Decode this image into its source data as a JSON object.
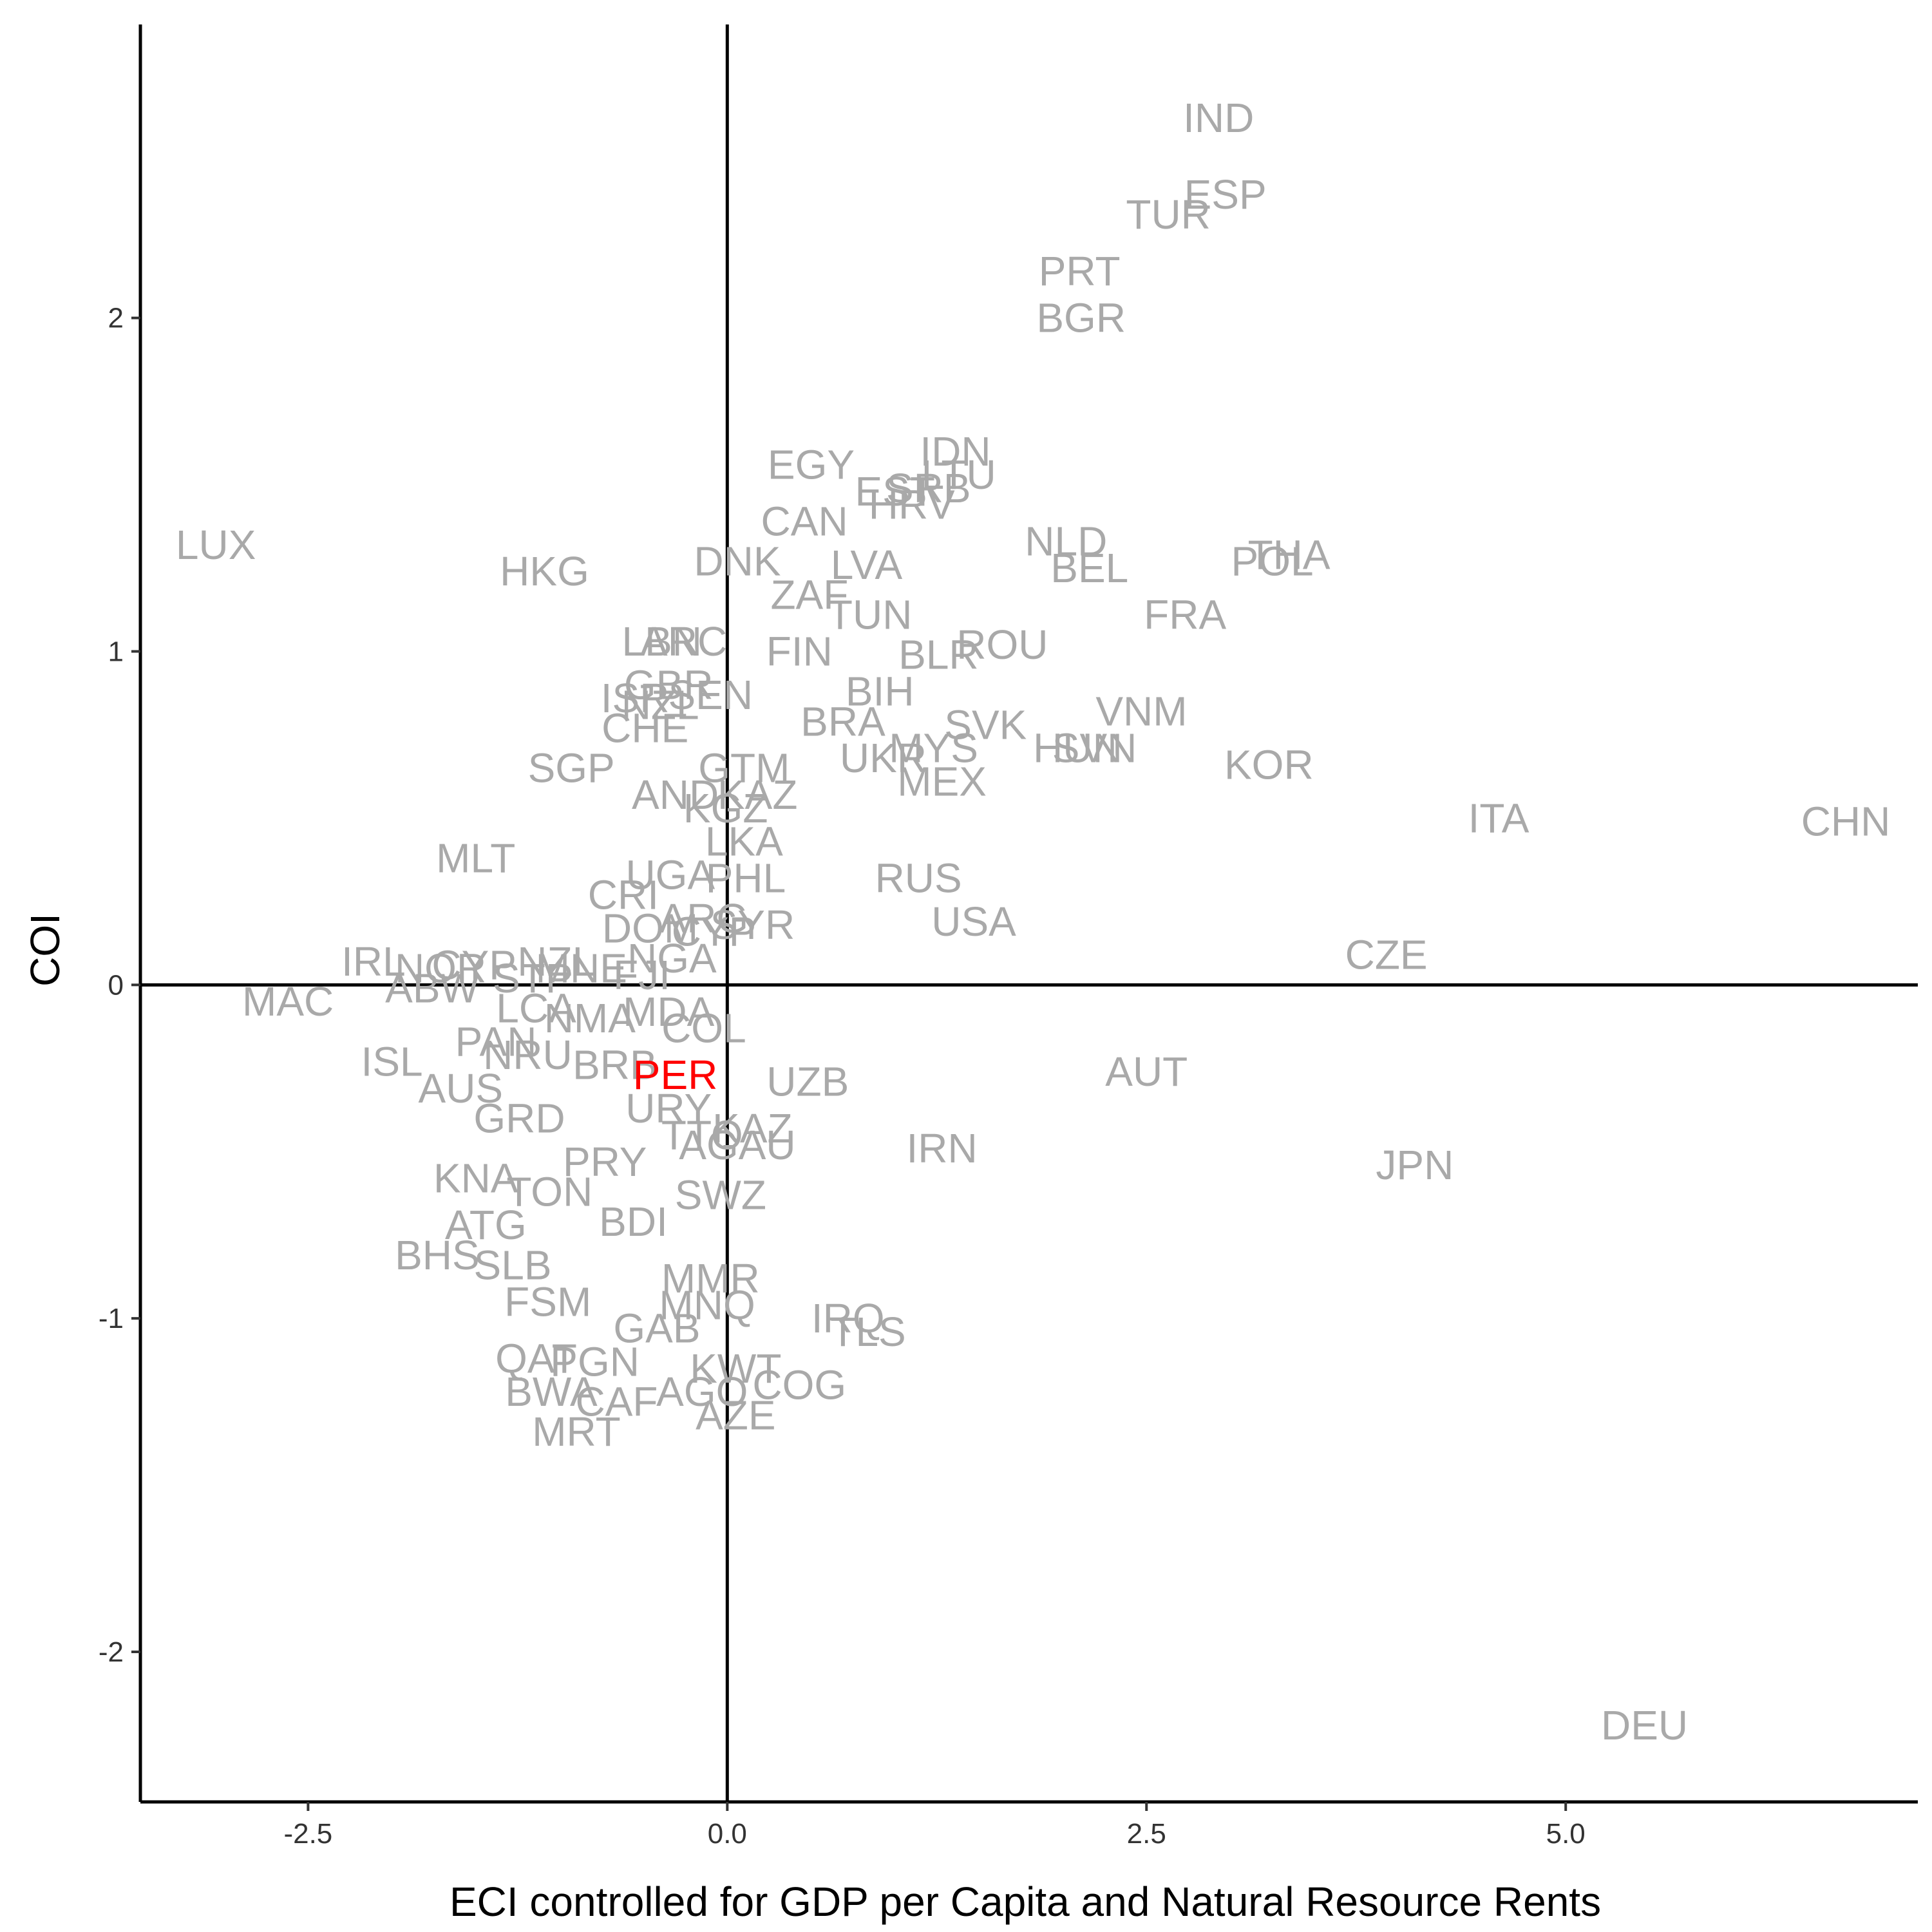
{
  "chart_data": {
    "type": "scatter",
    "title": "",
    "xlabel": "ECI controlled for GDP per Capita and Natural Resource Rents",
    "ylabel": "COI",
    "xlim": [
      -3.5,
      7.1
    ],
    "ylim": [
      -2.45,
      2.88
    ],
    "xticks": [
      -2.5,
      0.0,
      2.5,
      5.0
    ],
    "xtick_labels": [
      "-2.5",
      "0.0",
      "2.5",
      "5.0"
    ],
    "yticks": [
      -2,
      -1,
      0,
      1,
      2
    ],
    "ytick_labels": [
      "-2",
      "-1",
      "0",
      "1",
      "2"
    ],
    "reference_lines": {
      "x": 0,
      "y": 0
    },
    "grid": false,
    "colors": {
      "default": "#a9a9a9",
      "highlight": "#ff0000",
      "axis": "#000000"
    },
    "highlight": "PER",
    "points": [
      {
        "label": "IND",
        "x": 2.93,
        "y": 2.6
      },
      {
        "label": "ESP",
        "x": 2.97,
        "y": 2.37
      },
      {
        "label": "TUR",
        "x": 2.63,
        "y": 2.31
      },
      {
        "label": "PRT",
        "x": 2.1,
        "y": 2.14
      },
      {
        "label": "BGR",
        "x": 2.11,
        "y": 2.0
      },
      {
        "label": "IDN",
        "x": 1.36,
        "y": 1.6
      },
      {
        "label": "EGY",
        "x": 0.5,
        "y": 1.56
      },
      {
        "label": "LTU",
        "x": 1.38,
        "y": 1.53
      },
      {
        "label": "EST",
        "x": 1.0,
        "y": 1.48
      },
      {
        "label": "SRB",
        "x": 1.2,
        "y": 1.49
      },
      {
        "label": "HRV",
        "x": 1.1,
        "y": 1.44
      },
      {
        "label": "CAN",
        "x": 0.46,
        "y": 1.39
      },
      {
        "label": "NLD",
        "x": 2.02,
        "y": 1.33
      },
      {
        "label": "THA",
        "x": 3.35,
        "y": 1.29
      },
      {
        "label": "POL",
        "x": 3.25,
        "y": 1.27
      },
      {
        "label": "LUX",
        "x": -3.05,
        "y": 1.32
      },
      {
        "label": "HKG",
        "x": -1.09,
        "y": 1.24
      },
      {
        "label": "DNK",
        "x": 0.06,
        "y": 1.27
      },
      {
        "label": "LVA",
        "x": 0.83,
        "y": 1.26
      },
      {
        "label": "BEL",
        "x": 2.16,
        "y": 1.25
      },
      {
        "label": "ZAF",
        "x": 0.49,
        "y": 1.17
      },
      {
        "label": "TUN",
        "x": 0.85,
        "y": 1.11
      },
      {
        "label": "FRA",
        "x": 2.73,
        "y": 1.11
      },
      {
        "label": "LBN",
        "x": -0.39,
        "y": 1.03
      },
      {
        "label": "ARC",
        "x": -0.26,
        "y": 1.03
      },
      {
        "label": "FIN",
        "x": 0.43,
        "y": 1.0
      },
      {
        "label": "BLR",
        "x": 1.26,
        "y": 0.99
      },
      {
        "label": "ROU",
        "x": 1.64,
        "y": 1.02
      },
      {
        "label": "BIH",
        "x": 0.91,
        "y": 0.88
      },
      {
        "label": "VNM",
        "x": 2.47,
        "y": 0.82
      },
      {
        "label": "GBR",
        "x": -0.35,
        "y": 0.9
      },
      {
        "label": "SEN",
        "x": -0.1,
        "y": 0.87
      },
      {
        "label": "ISR",
        "x": -0.55,
        "y": 0.86
      },
      {
        "label": "NZL",
        "x": -0.4,
        "y": 0.84
      },
      {
        "label": "BRA",
        "x": 0.69,
        "y": 0.79
      },
      {
        "label": "SVK",
        "x": 1.54,
        "y": 0.78
      },
      {
        "label": "CHE",
        "x": -0.49,
        "y": 0.77
      },
      {
        "label": "HUN",
        "x": 2.09,
        "y": 0.71
      },
      {
        "label": "SVN",
        "x": 2.19,
        "y": 0.71
      },
      {
        "label": "MYS",
        "x": 1.23,
        "y": 0.71
      },
      {
        "label": "UKR",
        "x": 0.93,
        "y": 0.68
      },
      {
        "label": "SGP",
        "x": -0.93,
        "y": 0.65
      },
      {
        "label": "GTM",
        "x": 0.1,
        "y": 0.65
      },
      {
        "label": "KOR",
        "x": 3.23,
        "y": 0.66
      },
      {
        "label": "MEX",
        "x": 1.28,
        "y": 0.61
      },
      {
        "label": "AND",
        "x": -0.31,
        "y": 0.57
      },
      {
        "label": "KAZ",
        "x": 0.18,
        "y": 0.57
      },
      {
        "label": "KGZ",
        "x": -0.01,
        "y": 0.53
      },
      {
        "label": "ITA",
        "x": 4.6,
        "y": 0.5
      },
      {
        "label": "CHN",
        "x": 6.67,
        "y": 0.49
      },
      {
        "label": "LKA",
        "x": 0.1,
        "y": 0.43
      },
      {
        "label": "MLT",
        "x": -1.5,
        "y": 0.38
      },
      {
        "label": "UGA",
        "x": -0.34,
        "y": 0.33
      },
      {
        "label": "PHL",
        "x": 0.11,
        "y": 0.32
      },
      {
        "label": "RUS",
        "x": 1.14,
        "y": 0.32
      },
      {
        "label": "CRI",
        "x": -0.62,
        "y": 0.27
      },
      {
        "label": "ARG",
        "x": -0.14,
        "y": 0.2
      },
      {
        "label": "SYR",
        "x": 0.15,
        "y": 0.18
      },
      {
        "label": "USA",
        "x": 1.47,
        "y": 0.19
      },
      {
        "label": "DOM",
        "x": -0.46,
        "y": 0.17
      },
      {
        "label": "CYP",
        "x": -0.08,
        "y": 0.16
      },
      {
        "label": "CZE",
        "x": 3.93,
        "y": 0.09
      },
      {
        "label": "IRL",
        "x": -2.11,
        "y": 0.07
      },
      {
        "label": "NOR",
        "x": -1.71,
        "y": 0.05
      },
      {
        "label": "CYP",
        "x": -1.51,
        "y": 0.06
      },
      {
        "label": "NZL",
        "x": -1.02,
        "y": 0.07
      },
      {
        "label": "MNE",
        "x": -0.87,
        "y": 0.05
      },
      {
        "label": "NGA",
        "x": -0.33,
        "y": 0.08
      },
      {
        "label": "ABW",
        "x": -1.76,
        "y": -0.01
      },
      {
        "label": "STP",
        "x": -1.16,
        "y": 0.02
      },
      {
        "label": "FJI",
        "x": -0.51,
        "y": 0.03
      },
      {
        "label": "MAC",
        "x": -2.62,
        "y": -0.05
      },
      {
        "label": "LCA",
        "x": -1.14,
        "y": -0.07
      },
      {
        "label": "MDA",
        "x": -0.35,
        "y": -0.08
      },
      {
        "label": "NMA",
        "x": -0.82,
        "y": -0.1
      },
      {
        "label": "COL",
        "x": -0.14,
        "y": -0.13
      },
      {
        "label": "PAN",
        "x": -1.38,
        "y": -0.17
      },
      {
        "label": "ISL",
        "x": -2.0,
        "y": -0.23
      },
      {
        "label": "NRU",
        "x": -1.19,
        "y": -0.21
      },
      {
        "label": "BRB",
        "x": -0.67,
        "y": -0.24
      },
      {
        "label": "PER",
        "x": -0.31,
        "y": -0.27
      },
      {
        "label": "UZB",
        "x": 0.48,
        "y": -0.29
      },
      {
        "label": "AUT",
        "x": 2.5,
        "y": -0.26
      },
      {
        "label": "AUS",
        "x": -1.59,
        "y": -0.31
      },
      {
        "label": "URY",
        "x": -0.35,
        "y": -0.37
      },
      {
        "label": "GRD",
        "x": -1.24,
        "y": -0.4
      },
      {
        "label": "KAZ",
        "x": 0.15,
        "y": -0.43
      },
      {
        "label": "TTO",
        "x": -0.15,
        "y": -0.45
      },
      {
        "label": "AGAU",
        "x": 0.06,
        "y": -0.48
      },
      {
        "label": "IRN",
        "x": 1.28,
        "y": -0.49
      },
      {
        "label": "JPN",
        "x": 4.1,
        "y": -0.54
      },
      {
        "label": "PRY",
        "x": -0.73,
        "y": -0.53
      },
      {
        "label": "KNA",
        "x": -1.5,
        "y": -0.58
      },
      {
        "label": "TON",
        "x": -1.06,
        "y": -0.62
      },
      {
        "label": "SWZ",
        "x": -0.04,
        "y": -0.63
      },
      {
        "label": "ATG",
        "x": -1.44,
        "y": -0.72
      },
      {
        "label": "BDI",
        "x": -0.56,
        "y": -0.71
      },
      {
        "label": "BHS",
        "x": -1.73,
        "y": -0.81
      },
      {
        "label": "SLB",
        "x": -1.28,
        "y": -0.84
      },
      {
        "label": "MMR",
        "x": -0.1,
        "y": -0.88
      },
      {
        "label": "FSM",
        "x": -1.07,
        "y": -0.95
      },
      {
        "label": "MNQ",
        "x": -0.12,
        "y": -0.96
      },
      {
        "label": "IRQ",
        "x": 0.72,
        "y": -1.0
      },
      {
        "label": "TLS",
        "x": 0.84,
        "y": -1.04
      },
      {
        "label": "GAB",
        "x": -0.42,
        "y": -1.03
      },
      {
        "label": "QAT",
        "x": -1.14,
        "y": -1.12
      },
      {
        "label": "PGN",
        "x": -0.79,
        "y": -1.13
      },
      {
        "label": "KWT",
        "x": 0.05,
        "y": -1.15
      },
      {
        "label": "COG",
        "x": 0.43,
        "y": -1.2
      },
      {
        "label": "BWA",
        "x": -1.05,
        "y": -1.22
      },
      {
        "label": "CAF",
        "x": -0.66,
        "y": -1.25
      },
      {
        "label": "AGO",
        "x": -0.15,
        "y": -1.22
      },
      {
        "label": "AZE",
        "x": 0.05,
        "y": -1.29
      },
      {
        "label": "MRT",
        "x": -0.9,
        "y": -1.34
      },
      {
        "label": "DEU",
        "x": 5.47,
        "y": -2.22
      }
    ]
  }
}
